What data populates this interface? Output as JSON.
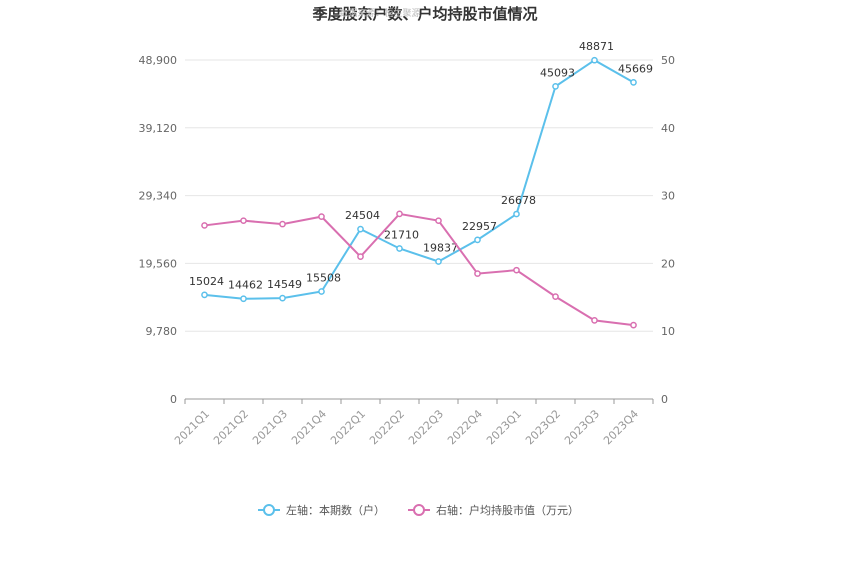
{
  "chart_data": {
    "type": "line",
    "title": "季度股东户数、户均持股市值情况",
    "watermark": "数据来源：恒生聚源",
    "categories": [
      "2021Q1",
      "2021Q2",
      "2021Q3",
      "2021Q4",
      "2022Q1",
      "2022Q2",
      "2022Q3",
      "2022Q4",
      "2023Q1",
      "2023Q2",
      "2023Q3",
      "2023Q4"
    ],
    "left_axis": {
      "ticks": [
        "0",
        "9,780",
        "19,560",
        "29,340",
        "39,120",
        "48,900"
      ],
      "ylim": [
        0,
        48900
      ]
    },
    "right_axis": {
      "ticks": [
        "0",
        "10",
        "20",
        "30",
        "40",
        "50"
      ],
      "ylim": [
        0,
        50
      ]
    },
    "series": [
      {
        "name": "左轴：本期数（户）",
        "axis": "left",
        "color": "#5bc0eb",
        "values": [
          15024,
          14462,
          14549,
          15508,
          24504,
          21710,
          19837,
          22957,
          26678,
          45093,
          48871,
          45669
        ],
        "labels": [
          "15024",
          "14462",
          "14549",
          "15508",
          "24504",
          "21710",
          "19837",
          "22957",
          "26678",
          "45093",
          "48871",
          "45669"
        ]
      },
      {
        "name": "右轴：户均持股市值（万元）",
        "axis": "right",
        "color": "#d96fb0",
        "values": [
          25.6,
          26.3,
          25.8,
          26.9,
          21.0,
          27.3,
          26.3,
          18.5,
          19.0,
          15.1,
          11.6,
          10.9
        ]
      }
    ],
    "grid": true,
    "legend_position": "bottom"
  }
}
